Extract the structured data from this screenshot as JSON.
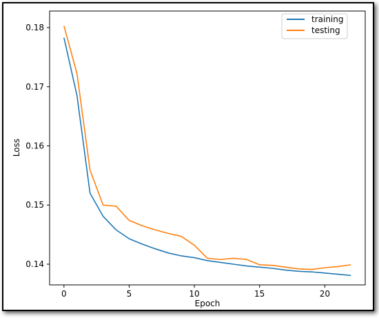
{
  "chart_data": {
    "type": "line",
    "xlabel": "Epoch",
    "ylabel": "Loss",
    "xlim": [
      -1.1,
      23.1
    ],
    "ylim": [
      0.1365,
      0.1828
    ],
    "xticks": [
      0,
      5,
      10,
      15,
      20
    ],
    "yticks": [
      0.14,
      0.15,
      0.16,
      0.17,
      0.18
    ],
    "ytick_labels": [
      "0.14",
      "0.15",
      "0.16",
      "0.17",
      "0.18"
    ],
    "legend_position": "top-right",
    "grid": false,
    "x": [
      0,
      1,
      2,
      3,
      4,
      5,
      6,
      7,
      8,
      9,
      10,
      11,
      12,
      13,
      14,
      15,
      16,
      17,
      18,
      19,
      20,
      21,
      22
    ],
    "series": [
      {
        "name": "training",
        "color": "#1f77b4",
        "values": [
          0.1783,
          0.1685,
          0.152,
          0.1481,
          0.1458,
          0.1443,
          0.1434,
          0.1426,
          0.1419,
          0.1414,
          0.1411,
          0.1406,
          0.1403,
          0.14,
          0.1397,
          0.1395,
          0.1393,
          0.139,
          0.1388,
          0.1387,
          0.1385,
          0.1383,
          0.1381
        ]
      },
      {
        "name": "testing",
        "color": "#ff7f0e",
        "values": [
          0.1803,
          0.1722,
          0.1559,
          0.15,
          0.1498,
          0.1474,
          0.1465,
          0.1458,
          0.1452,
          0.1447,
          0.1432,
          0.141,
          0.1408,
          0.141,
          0.1408,
          0.1399,
          0.1398,
          0.1395,
          0.1392,
          0.1391,
          0.1394,
          0.1396,
          0.1399
        ]
      }
    ]
  }
}
